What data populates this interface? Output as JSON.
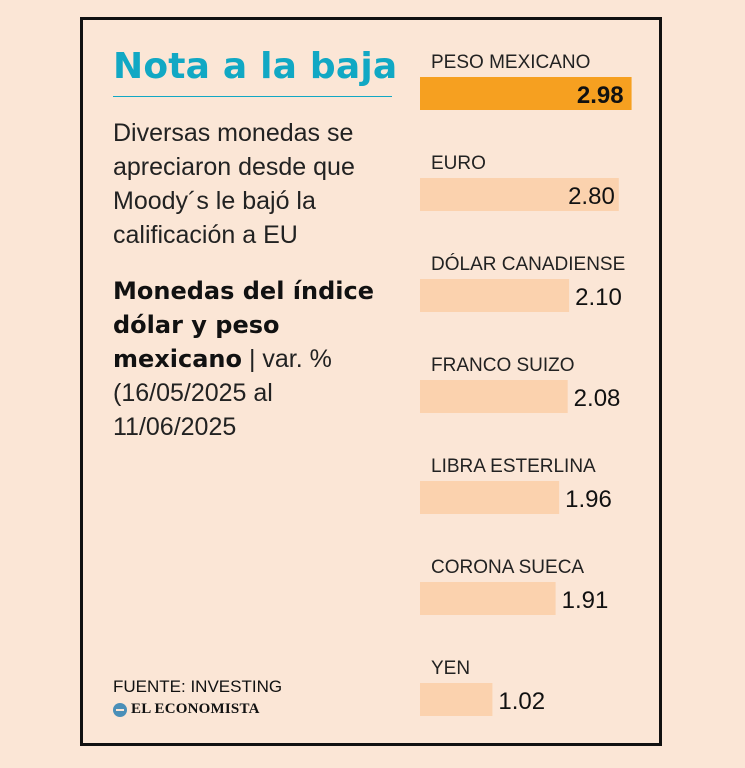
{
  "title": "Nota a la baja",
  "subtitle": "Diversas monedas se apreciaron desde que Moody´s le bajó la calificación a EU",
  "description": {
    "bold": "Monedas del índice dólar y peso mexicano",
    "rest": " | var. % (16/05/2025 al 11/06/2025"
  },
  "source": "FUENTE: INVESTING",
  "brand": "EL ECONOMISTA",
  "colors": {
    "highlight": "#f6a020",
    "bar": "#fbd2ae",
    "title": "#11a8c4",
    "highlight_text": "#ffffff",
    "value_text": "#111111"
  },
  "chart_data": {
    "type": "bar",
    "orientation": "horizontal",
    "categories": [
      "PESO MEXICANO",
      "EURO",
      "DÓLAR CANADIENSE",
      "FRANCO SUIZO",
      "LIBRA ESTERLINA",
      "CORONA SUECA",
      "YEN"
    ],
    "values": [
      2.98,
      2.8,
      2.1,
      2.08,
      1.96,
      1.91,
      1.02
    ],
    "value_labels": [
      "2.98",
      "2.80",
      "2.10",
      "2.08",
      "1.96",
      "1.91",
      "1.02"
    ],
    "highlight_index": 0,
    "grid": false,
    "legend": "none"
  }
}
